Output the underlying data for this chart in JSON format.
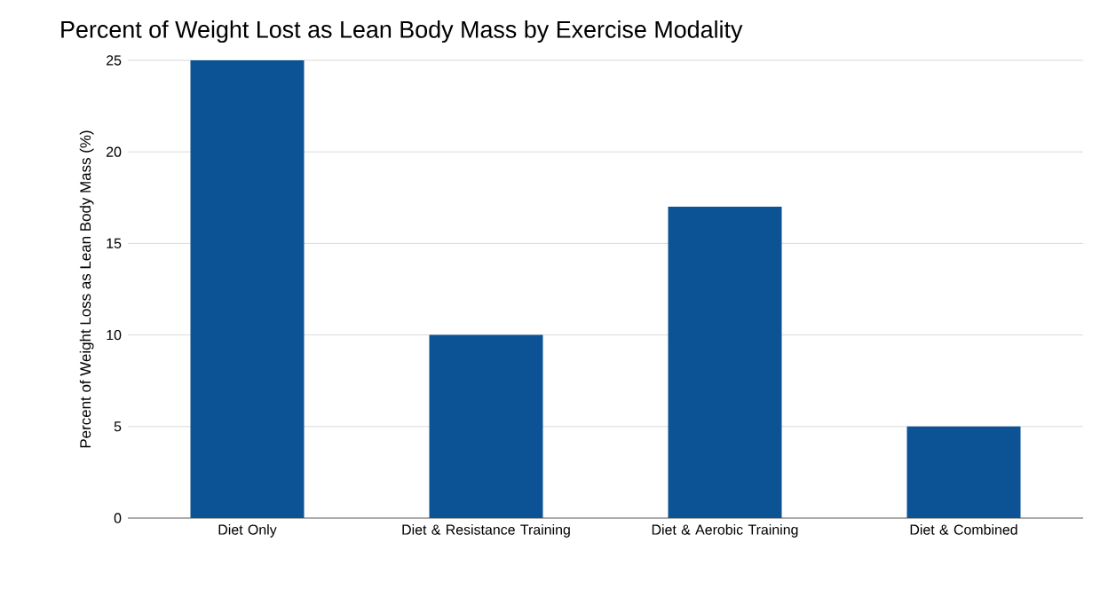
{
  "chart_data": {
    "type": "bar",
    "title": "Percent of Weight Lost as Lean Body Mass by Exercise Modality",
    "ylabel": "Percent of Weight Loss as Lean Body Mass (%)",
    "categories": [
      "Diet Only",
      "Diet & Resistance Training",
      "Diet & Aerobic Training",
      "Diet & Combined"
    ],
    "values": [
      25,
      10,
      17,
      5
    ],
    "color": "#0b5394",
    "ylim": [
      0,
      25
    ],
    "yticks": [
      0,
      5,
      10,
      15,
      20,
      25
    ],
    "grid": "y"
  }
}
